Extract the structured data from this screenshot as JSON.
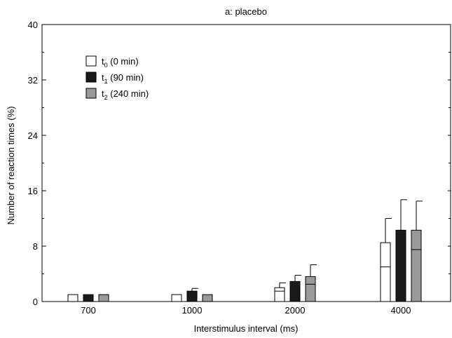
{
  "chart_data": {
    "type": "bar",
    "title": "a: placebo",
    "xlabel": "Interstimulus interval (ms)",
    "ylabel": "Number of reaction times (%)",
    "ylim": [
      0,
      40
    ],
    "yticks": [
      "0",
      "8",
      "16",
      "24",
      "32",
      "40"
    ],
    "categories": [
      "700",
      "1000",
      "2000",
      "4000"
    ],
    "grid": false,
    "legend_position": "top-left",
    "series": [
      {
        "name_main": "t",
        "name_sub": "0",
        "name_rest": " (0 min)",
        "fill": "#ffffff",
        "values": [
          1.0,
          1.0,
          2.0,
          8.5
        ],
        "error_upper": [
          1.0,
          1.0,
          2.7,
          12.0
        ],
        "inner_line": [
          null,
          null,
          1.5,
          5.0
        ]
      },
      {
        "name_main": "t",
        "name_sub": "1",
        "name_rest": " (90 min)",
        "fill": "#1a1a1a",
        "values": [
          1.0,
          1.5,
          2.9,
          10.3
        ],
        "error_upper": [
          1.0,
          1.9,
          3.8,
          14.7
        ],
        "inner_line": [
          null,
          null,
          null,
          null
        ]
      },
      {
        "name_main": "t",
        "name_sub": "2",
        "name_rest": " (240 min)",
        "fill": "#999999",
        "values": [
          1.0,
          1.0,
          3.6,
          10.3
        ],
        "error_upper": [
          1.0,
          1.0,
          5.3,
          14.5
        ],
        "inner_line": [
          null,
          null,
          2.5,
          7.5
        ]
      }
    ]
  }
}
